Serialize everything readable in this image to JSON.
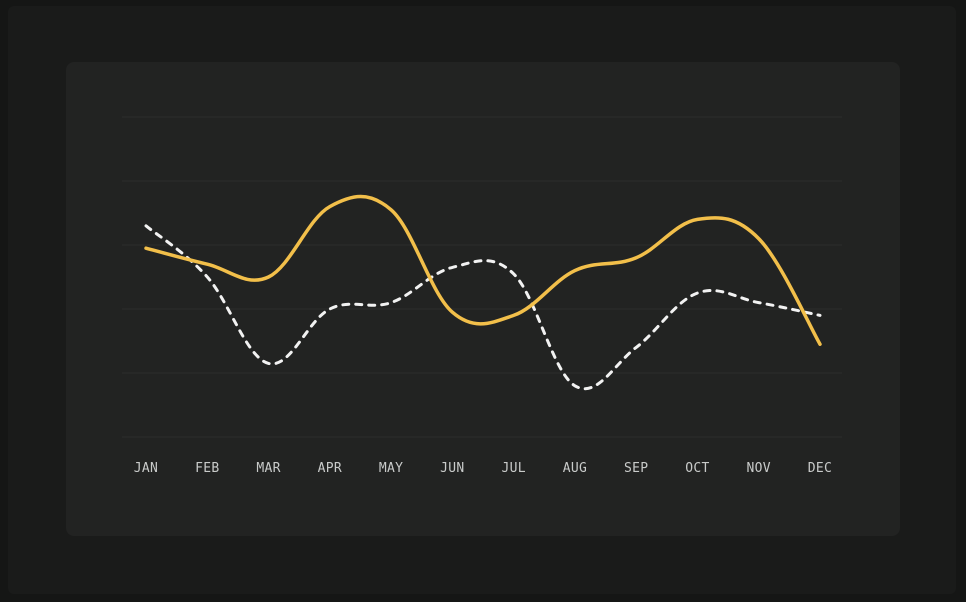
{
  "chart_data": {
    "type": "line",
    "categories": [
      "JAN",
      "FEB",
      "MAR",
      "APR",
      "MAY",
      "JUN",
      "JUL",
      "AUG",
      "SEP",
      "OCT",
      "NOV",
      "DEC"
    ],
    "series": [
      {
        "values": [
          59,
          54,
          50,
          72,
          71,
          39,
          38,
          52,
          56,
          68,
          62,
          29
        ],
        "color": "#f2bf4a",
        "style": "solid"
      },
      {
        "values": [
          66,
          50,
          23,
          40,
          42,
          53,
          51,
          16,
          28,
          45,
          42,
          38
        ],
        "color": "#f2f2f2",
        "style": "dashed"
      }
    ],
    "ylim": [
      0,
      100
    ],
    "grid": true,
    "legend": "none"
  },
  "colors": {
    "background": "#151615",
    "card": "#222322",
    "grid": "#2c2d2c",
    "tick_label": "#c9cbca"
  }
}
